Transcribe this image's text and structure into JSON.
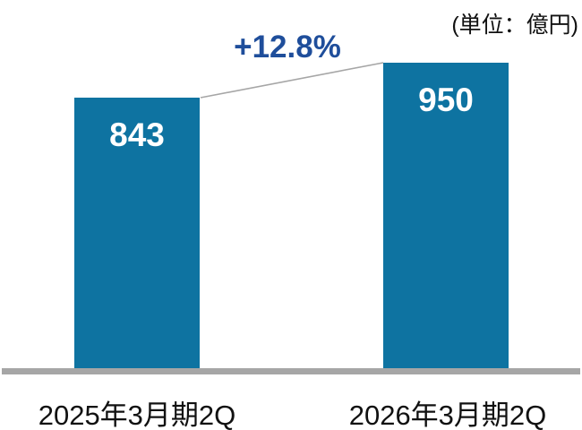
{
  "header": {
    "unit_label": "(単位：億円)"
  },
  "annotation": {
    "growth_label": "+12.8%"
  },
  "chart_data": {
    "type": "bar",
    "title": "",
    "categories": [
      "2025年3月期2Q",
      "2026年3月期2Q"
    ],
    "values": [
      843,
      950
    ],
    "value_labels": [
      "843",
      "950"
    ],
    "unit": "億円",
    "growth_annotation": "+12.8%",
    "xlabel": "",
    "ylabel": "",
    "ylim": [
      0,
      950
    ],
    "grid": false,
    "legend": "none",
    "annotations": [
      "+12.8%",
      "(単位：億円)"
    ]
  },
  "colors": {
    "bar": "#0e73a1",
    "growth_text": "#1f4e9b",
    "value_text": "#ffffff",
    "label_text": "#111111",
    "baseline": "#a6a6a6",
    "connector": "#a6a6a6",
    "background": "#ffffff"
  }
}
